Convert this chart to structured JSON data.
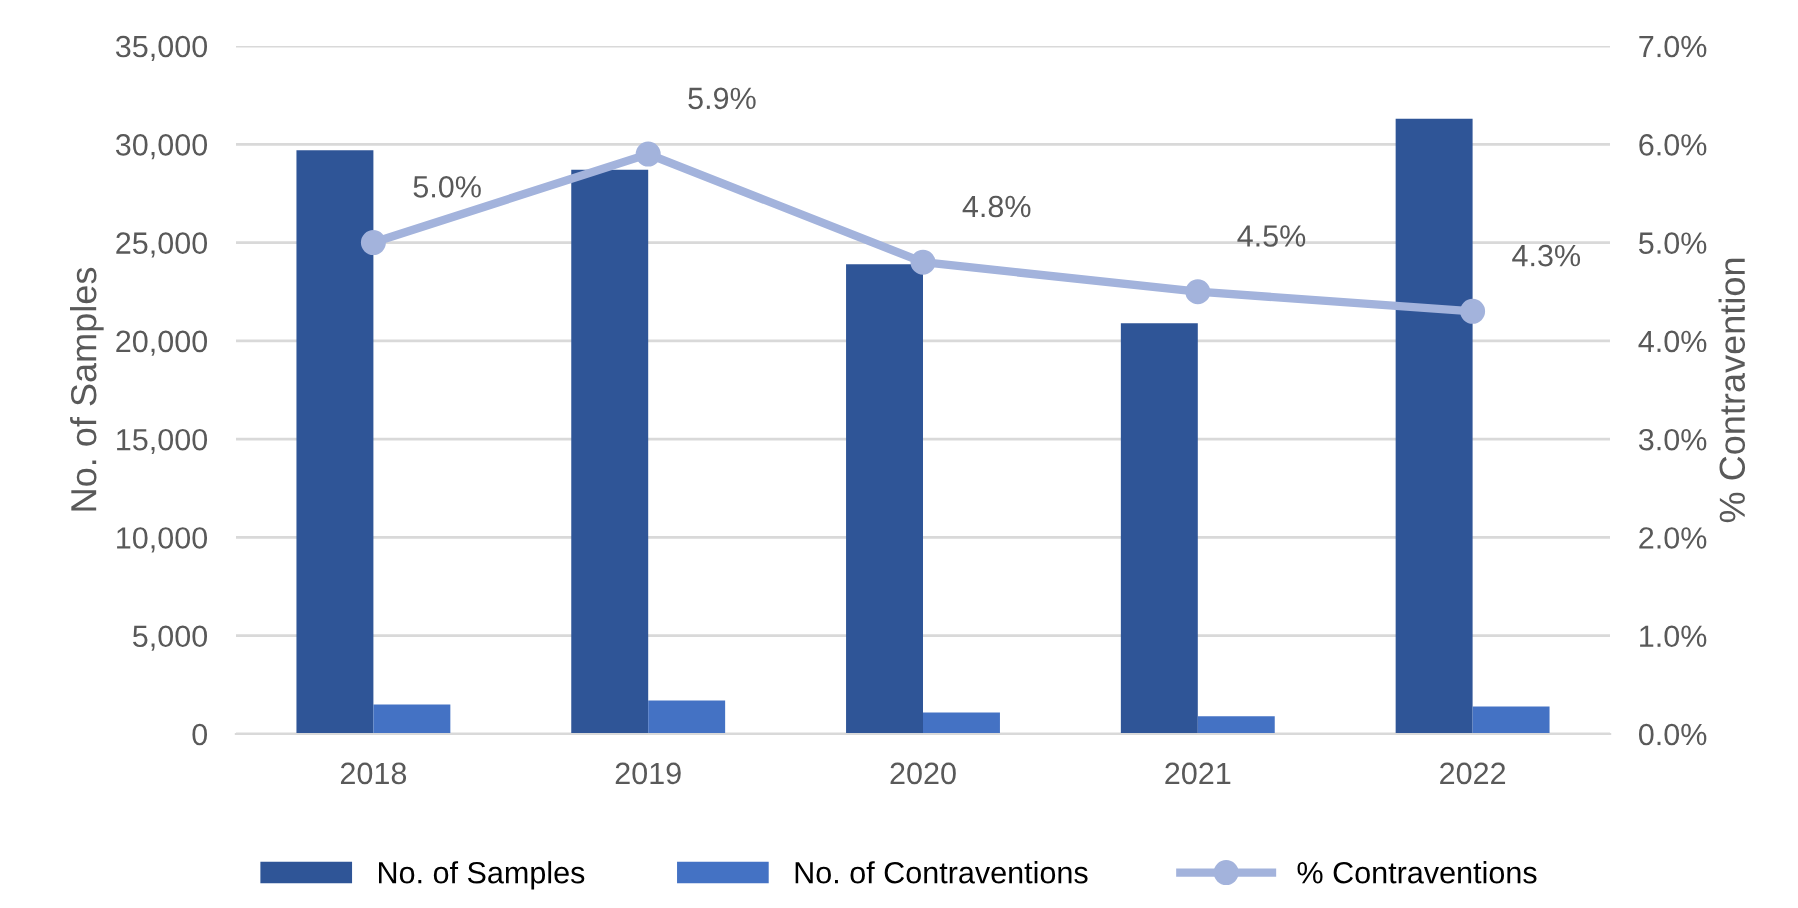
{
  "chart_data": {
    "type": "bar",
    "categories": [
      "2018",
      "2019",
      "2020",
      "2021",
      "2022"
    ],
    "ylabel": "No. of Samples",
    "y2label": "% Contravention",
    "ylim": [
      0,
      35000
    ],
    "yticks": [
      {
        "value": 0,
        "label": "0"
      },
      {
        "value": 5000,
        "label": "5,000"
      },
      {
        "value": 10000,
        "label": "10,000"
      },
      {
        "value": 15000,
        "label": "15,000"
      },
      {
        "value": 20000,
        "label": "20,000"
      },
      {
        "value": 25000,
        "label": "25,000"
      },
      {
        "value": 30000,
        "label": "30,000"
      },
      {
        "value": 35000,
        "label": "35,000"
      }
    ],
    "y2lim": [
      0,
      7
    ],
    "y2ticks": [
      {
        "value": 0,
        "label": "0.0%"
      },
      {
        "value": 1,
        "label": "1.0%"
      },
      {
        "value": 2,
        "label": "2.0%"
      },
      {
        "value": 3,
        "label": "3.0%"
      },
      {
        "value": 4,
        "label": "4.0%"
      },
      {
        "value": 5,
        "label": "5.0%"
      },
      {
        "value": 6,
        "label": "6.0%"
      },
      {
        "value": 7,
        "label": "7.0%"
      }
    ],
    "grid": "y",
    "legend": "bottom",
    "series": [
      {
        "name": "No. of Samples",
        "color": "#2f5597",
        "values": [
          29700,
          28700,
          23900,
          20900,
          31300
        ]
      },
      {
        "name": "No. of Contraventions",
        "color": "#4472c4",
        "values": [
          1500,
          1700,
          1100,
          900,
          1400
        ]
      },
      {
        "name": "% Contraventions",
        "type": "line",
        "axis": "y2",
        "color": "#a3b3dc",
        "marker": "circle",
        "values": [
          5.0,
          5.9,
          4.8,
          4.5,
          4.3
        ],
        "value_labels": [
          "5.0%",
          "5.9%",
          "4.8%",
          "4.5%",
          "4.3%"
        ]
      }
    ]
  }
}
